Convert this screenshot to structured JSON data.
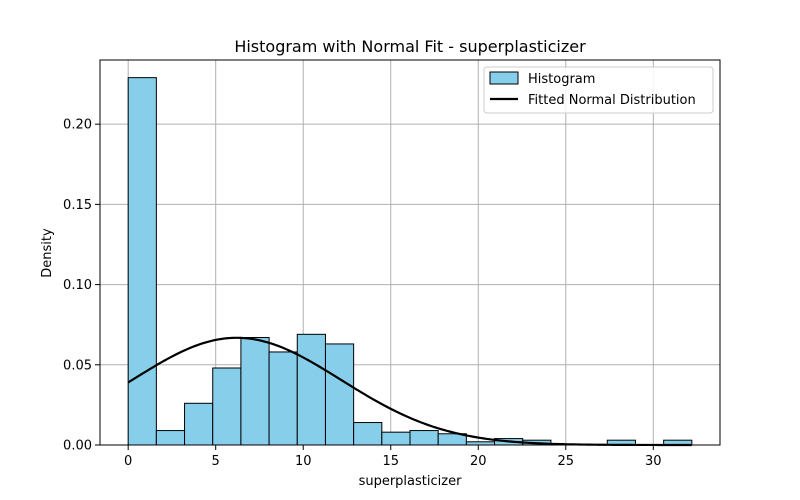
{
  "chart_data": {
    "type": "bar",
    "title": "Histogram with Normal Fit - superplasticizer",
    "xlabel": "superplasticizer",
    "ylabel": "Density",
    "xlim": [
      -1.61,
      33.81
    ],
    "ylim": [
      0,
      0.24
    ],
    "xticks": [
      0,
      5,
      10,
      15,
      20,
      25,
      30
    ],
    "xtick_labels": [
      "0",
      "5",
      "10",
      "15",
      "20",
      "25",
      "30"
    ],
    "yticks": [
      0.0,
      0.05,
      0.1,
      0.15,
      0.2
    ],
    "ytick_labels": [
      "0.00",
      "0.05",
      "0.10",
      "0.15",
      "0.20"
    ],
    "grid": true,
    "legend_position": "top-right",
    "legend": [
      "Histogram",
      "Fitted Normal Distribution"
    ],
    "bar_color": "#87ceeb",
    "edge_color": "#000000",
    "line_color": "#000000",
    "histogram": {
      "bin_edges": [
        0.0,
        1.61,
        3.22,
        4.83,
        6.44,
        8.05,
        9.66,
        11.27,
        12.88,
        14.49,
        16.1,
        17.71,
        19.32,
        20.93,
        22.54,
        24.15,
        25.76,
        27.37,
        28.98,
        30.59,
        32.2
      ],
      "density": [
        0.229,
        0.009,
        0.026,
        0.048,
        0.067,
        0.058,
        0.069,
        0.063,
        0.014,
        0.008,
        0.009,
        0.007,
        0.002,
        0.004,
        0.003,
        0.0,
        0.0,
        0.003,
        0.0,
        0.003
      ]
    },
    "normal_fit": {
      "mean": 6.2,
      "std": 5.97,
      "x_range": [
        0,
        32.2
      ]
    }
  }
}
